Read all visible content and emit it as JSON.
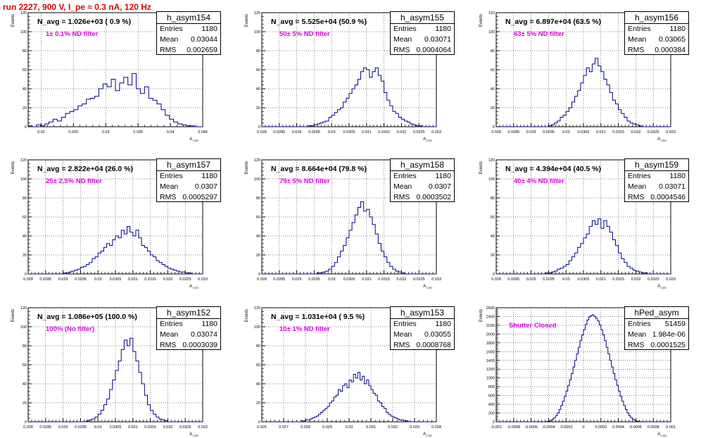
{
  "title": "run 2227,   900 V, I_pe ≈ 0.3 nA, 120 Hz",
  "y_label": "Events",
  "x_label": "A_LED",
  "stat_labels": {
    "entries": "Entries",
    "mean": "Mean",
    "rms": "RMS"
  },
  "chart_data": [
    {
      "type": "bar",
      "name": "h_asym154",
      "navg": "N_avg = 1.026e+03 ( 0.9 %)",
      "filter": "1± 0.1% ND filter",
      "entries": "1180",
      "mean": "0.03044",
      "rms": "0.002659",
      "xlim": [
        0.018,
        0.045
      ],
      "ylim": [
        0,
        120
      ],
      "yticks": [
        "0",
        "20",
        "40",
        "60",
        "80",
        "100",
        "120"
      ],
      "xticks": [
        "0.02",
        "0.025",
        "0.03",
        "0.035",
        "0.04",
        "0.045"
      ],
      "xtickvals": [
        0.02,
        0.025,
        0.03,
        0.035,
        0.04,
        0.045
      ],
      "values": [
        1,
        0,
        2,
        1,
        3,
        5,
        8,
        6,
        10,
        14,
        16,
        18,
        22,
        24,
        29,
        30,
        32,
        40,
        45,
        42,
        50,
        38,
        46,
        52,
        44,
        56,
        40,
        35,
        42,
        30,
        28,
        24,
        18,
        12,
        8,
        5,
        3,
        2,
        1,
        1,
        0,
        0
      ]
    },
    {
      "type": "bar",
      "name": "h_asym155",
      "navg": "N_avg = 5.525e+04 (50.9 %)",
      "filter": "50± 5% ND filter",
      "entries": "1180",
      "mean": "0.03071",
      "rms": "0.0004064",
      "xlim": [
        0.028,
        0.033
      ],
      "ylim": [
        0,
        120
      ],
      "yticks": [
        "0",
        "20",
        "40",
        "60",
        "80",
        "100",
        "120"
      ],
      "xticks": [
        "0.028",
        "0.0285",
        "0.029",
        "0.0295",
        "0.03",
        "0.0305",
        "0.031",
        "0.0315",
        "0.032",
        "0.0325",
        "0.033"
      ],
      "xtickvals": [
        0.028,
        0.0285,
        0.029,
        0.0295,
        0.03,
        0.0305,
        0.031,
        0.0315,
        0.032,
        0.0325,
        0.033
      ],
      "values": [
        0,
        0,
        0,
        0,
        0,
        0,
        0,
        0,
        0,
        0,
        0,
        0,
        0,
        0,
        0,
        0,
        1,
        1,
        2,
        3,
        4,
        5,
        6,
        10,
        12,
        15,
        18,
        20,
        26,
        30,
        35,
        40,
        44,
        50,
        58,
        62,
        60,
        52,
        58,
        62,
        54,
        48,
        36,
        28,
        22,
        16,
        14,
        10,
        8,
        6,
        5,
        3,
        2,
        1,
        1,
        0,
        0,
        0,
        0,
        0
      ]
    },
    {
      "type": "bar",
      "name": "h_asym156",
      "navg": "N_avg = 6.897e+04 (63.5 %)",
      "filter": "63± 5% ND filter",
      "entries": "1180",
      "mean": "0.03065",
      "rms": "0.000384",
      "xlim": [
        0.028,
        0.033
      ],
      "ylim": [
        0,
        120
      ],
      "yticks": [
        "0",
        "20",
        "40",
        "60",
        "80",
        "100",
        "120"
      ],
      "xticks": [
        "0.028",
        "0.0285",
        "0.029",
        "0.0295",
        "0.03",
        "0.0305",
        "0.031",
        "0.0315",
        "0.032",
        "0.0325",
        "0.033"
      ],
      "xtickvals": [
        0.028,
        0.0285,
        0.029,
        0.0295,
        0.03,
        0.0305,
        0.031,
        0.0315,
        0.032,
        0.0325,
        0.033
      ],
      "values": [
        0,
        0,
        0,
        0,
        0,
        0,
        0,
        0,
        0,
        0,
        0,
        0,
        0,
        0,
        0,
        0,
        0,
        0,
        1,
        2,
        4,
        6,
        10,
        12,
        16,
        20,
        26,
        32,
        38,
        46,
        54,
        62,
        58,
        66,
        72,
        64,
        58,
        50,
        44,
        36,
        28,
        24,
        18,
        14,
        10,
        6,
        4,
        3,
        2,
        1,
        0,
        0,
        0,
        0,
        0,
        0,
        0,
        0,
        0,
        0
      ]
    },
    {
      "type": "bar",
      "name": "h_asym157",
      "navg": "N_avg = 2.822e+04 (26.0 %)",
      "filter": "25± 2.5% ND filter",
      "entries": "1180",
      "mean": "0.0307",
      "rms": "0.0005297",
      "xlim": [
        0.028,
        0.033
      ],
      "ylim": [
        0,
        120
      ],
      "yticks": [
        "0",
        "20",
        "40",
        "60",
        "80",
        "100",
        "120"
      ],
      "xticks": [
        "0.028",
        "0.0285",
        "0.029",
        "0.0295",
        "0.03",
        "0.0305",
        "0.031",
        "0.0315",
        "0.032",
        "0.0325",
        "0.033"
      ],
      "xtickvals": [
        0.028,
        0.0285,
        0.029,
        0.0295,
        0.03,
        0.0305,
        0.031,
        0.0315,
        0.032,
        0.0325,
        0.033
      ],
      "values": [
        0,
        0,
        0,
        0,
        0,
        0,
        0,
        0,
        0,
        0,
        0,
        0,
        1,
        1,
        2,
        3,
        4,
        5,
        7,
        8,
        10,
        12,
        16,
        18,
        22,
        24,
        28,
        32,
        30,
        36,
        40,
        38,
        46,
        42,
        50,
        44,
        40,
        46,
        38,
        30,
        28,
        24,
        20,
        18,
        14,
        12,
        10,
        8,
        6,
        5,
        4,
        3,
        2,
        2,
        1,
        1,
        0,
        0,
        0,
        0
      ]
    },
    {
      "type": "bar",
      "name": "h_asym158",
      "navg": "N_avg = 8.664e+04 (79.8 %)",
      "filter": "79± 5% ND filter",
      "entries": "1180",
      "mean": "0.0307",
      "rms": "0.0003502",
      "xlim": [
        0.028,
        0.033
      ],
      "ylim": [
        0,
        120
      ],
      "yticks": [
        "0",
        "20",
        "40",
        "60",
        "80",
        "100",
        "120"
      ],
      "xticks": [
        "0.028",
        "0.0285",
        "0.029",
        "0.0295",
        "0.03",
        "0.0305",
        "0.031",
        "0.0315",
        "0.032",
        "0.0325",
        "0.033"
      ],
      "xtickvals": [
        0.028,
        0.0285,
        0.029,
        0.0295,
        0.03,
        0.0305,
        0.031,
        0.0315,
        0.032,
        0.0325,
        0.033
      ],
      "values": [
        0,
        0,
        0,
        0,
        0,
        0,
        0,
        0,
        0,
        0,
        0,
        0,
        0,
        0,
        0,
        0,
        0,
        0,
        0,
        1,
        1,
        2,
        3,
        5,
        8,
        12,
        18,
        24,
        30,
        38,
        46,
        54,
        62,
        70,
        76,
        66,
        68,
        60,
        52,
        42,
        32,
        24,
        18,
        12,
        8,
        5,
        3,
        2,
        1,
        0,
        0,
        0,
        0,
        0,
        0,
        0,
        0,
        0,
        0,
        0
      ]
    },
    {
      "type": "bar",
      "name": "h_asym159",
      "navg": "N_avg = 4.394e+04 (40.5 %)",
      "filter": "40± 4% ND filter",
      "entries": "1180",
      "mean": "0.03071",
      "rms": "0.0004546",
      "xlim": [
        0.028,
        0.033
      ],
      "ylim": [
        0,
        120
      ],
      "yticks": [
        "0",
        "20",
        "40",
        "60",
        "80",
        "100",
        "120"
      ],
      "xticks": [
        "0.028",
        "0.0285",
        "0.029",
        "0.0295",
        "0.03",
        "0.0305",
        "0.031",
        "0.0315",
        "0.032",
        "0.0325",
        "0.033"
      ],
      "xtickvals": [
        0.028,
        0.0285,
        0.029,
        0.0295,
        0.03,
        0.0305,
        0.031,
        0.0315,
        0.032,
        0.0325,
        0.033
      ],
      "values": [
        0,
        0,
        0,
        0,
        0,
        0,
        0,
        0,
        0,
        0,
        0,
        0,
        0,
        0,
        0,
        0,
        0,
        1,
        1,
        2,
        3,
        5,
        6,
        8,
        10,
        14,
        18,
        22,
        28,
        32,
        38,
        42,
        50,
        56,
        52,
        58,
        48,
        56,
        50,
        44,
        36,
        30,
        22,
        16,
        12,
        8,
        6,
        4,
        3,
        2,
        1,
        1,
        0,
        0,
        0,
        0,
        0,
        0,
        0,
        0
      ]
    },
    {
      "type": "bar",
      "name": "h_asym152",
      "navg": "N_avg = 1.086e+05 (100.0 %)",
      "filter": "100% (No filter)",
      "entries": "1180",
      "mean": "0.03074",
      "rms": "0.0003039",
      "xlim": [
        0.028,
        0.033
      ],
      "ylim": [
        0,
        120
      ],
      "yticks": [
        "0",
        "20",
        "40",
        "60",
        "80",
        "100",
        "120"
      ],
      "xticks": [
        "0.028",
        "0.0285",
        "0.029",
        "0.0295",
        "0.03",
        "0.0305",
        "0.031",
        "0.0315",
        "0.032",
        "0.0325",
        "0.033"
      ],
      "xtickvals": [
        0.028,
        0.0285,
        0.029,
        0.0295,
        0.03,
        0.0305,
        0.031,
        0.0315,
        0.032,
        0.0325,
        0.033
      ],
      "values": [
        0,
        0,
        0,
        0,
        0,
        0,
        0,
        0,
        0,
        0,
        0,
        0,
        0,
        0,
        0,
        0,
        0,
        0,
        0,
        0,
        1,
        2,
        3,
        5,
        8,
        12,
        18,
        24,
        34,
        44,
        54,
        64,
        76,
        86,
        80,
        88,
        74,
        64,
        52,
        40,
        28,
        18,
        12,
        8,
        5,
        3,
        2,
        1,
        0,
        0,
        0,
        0,
        0,
        0,
        0,
        0,
        0,
        0,
        0,
        0
      ]
    },
    {
      "type": "bar",
      "name": "h_asym153",
      "navg": "N_avg = 1.031e+04 ( 9.5 %)",
      "filter": "10± 1% ND filter",
      "entries": "1180",
      "mean": "0.03055",
      "rms": "0.0008768",
      "xlim": [
        0.026,
        0.034
      ],
      "ylim": [
        0,
        120
      ],
      "yticks": [
        "0",
        "20",
        "40",
        "60",
        "80",
        "100",
        "120"
      ],
      "xticks": [
        "0.026",
        "0.027",
        "0.028",
        "0.029",
        "0.03",
        "0.031",
        "0.032",
        "0.033",
        "0.034"
      ],
      "xtickvals": [
        0.026,
        0.027,
        0.028,
        0.029,
        0.03,
        0.031,
        0.032,
        0.033,
        0.034
      ],
      "values": [
        0,
        0,
        0,
        0,
        0,
        0,
        0,
        0,
        0,
        0,
        0,
        0,
        0,
        0,
        0,
        0,
        0,
        0,
        1,
        1,
        2,
        2,
        3,
        4,
        5,
        6,
        8,
        10,
        12,
        14,
        16,
        20,
        22,
        26,
        28,
        34,
        32,
        38,
        40,
        36,
        44,
        42,
        50,
        46,
        52,
        44,
        48,
        40,
        44,
        38,
        34,
        30,
        28,
        22,
        20,
        16,
        14,
        10,
        8,
        6,
        5,
        4,
        3,
        2,
        2,
        1,
        1,
        0,
        0,
        0,
        0,
        0,
        0,
        0,
        0,
        0,
        0,
        0,
        0,
        0
      ]
    },
    {
      "type": "bar",
      "name": "hPed_asym",
      "navg": "",
      "filter": "Shutter Closed",
      "entries": "51459",
      "mean": "1.984e-06",
      "rms": "0.0001525",
      "xlim": [
        -0.001,
        0.001
      ],
      "ylim": [
        0,
        2600
      ],
      "yticks": [
        "0",
        "200",
        "400",
        "600",
        "800",
        "1000",
        "1200",
        "1400",
        "1600",
        "1800",
        "2000",
        "2200",
        "2400",
        "2600"
      ],
      "xticks": [
        "-0.001",
        "-0.0008",
        "-0.0006",
        "-0.0004",
        "-0.0002",
        "0",
        "0.0002",
        "0.0004",
        "0.0006",
        "0.0008",
        "0.001"
      ],
      "xtickvals": [
        -0.001,
        -0.0008,
        -0.0006,
        -0.0004,
        -0.0002,
        0,
        0.0002,
        0.0004,
        0.0006,
        0.0008,
        0.001
      ],
      "values": [
        0,
        0,
        0,
        0,
        0,
        0,
        0,
        0,
        0,
        0,
        0,
        0,
        0,
        0,
        0,
        0,
        0,
        0,
        0,
        0,
        0,
        0,
        0,
        0,
        0,
        0,
        0,
        1,
        3,
        8,
        18,
        35,
        60,
        95,
        140,
        200,
        280,
        370,
        470,
        580,
        700,
        830,
        960,
        1100,
        1250,
        1400,
        1550,
        1700,
        1850,
        1980,
        2100,
        2220,
        2320,
        2390,
        2420,
        2440,
        2400,
        2360,
        2300,
        2210,
        2100,
        1980,
        1850,
        1700,
        1550,
        1400,
        1250,
        1100,
        960,
        830,
        700,
        580,
        470,
        370,
        280,
        200,
        140,
        95,
        60,
        35,
        18,
        8,
        3,
        1,
        0,
        0,
        0,
        0,
        0,
        0,
        0,
        0,
        0,
        0,
        0,
        0,
        0,
        0,
        0,
        0
      ]
    }
  ]
}
